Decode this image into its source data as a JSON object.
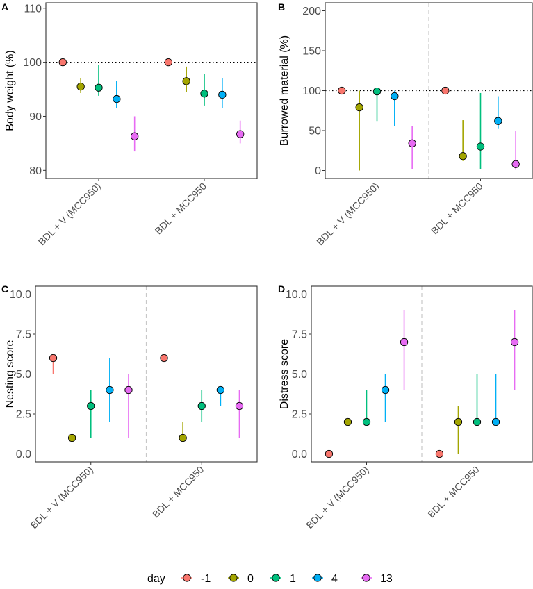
{
  "chart_data": [
    {
      "type": "scatter",
      "panel_letter": "A",
      "title": "",
      "xlabel": "",
      "ylabel": "Body weight (%)",
      "categories": [
        "BDL + V (MCC950)",
        "BDL + MCC950"
      ],
      "ylim": [
        78.5,
        111
      ],
      "yticks": [
        80,
        90,
        100,
        110
      ],
      "ytick_labels": [
        "80",
        "90",
        "100",
        "110"
      ],
      "reference_line": 100,
      "group_divider": false,
      "series": [
        {
          "name": "-1",
          "values": [
            100,
            100
          ],
          "lower": [
            null,
            null
          ],
          "upper": [
            null,
            null
          ]
        },
        {
          "name": "0",
          "values": [
            95.5,
            96.5
          ],
          "lower": [
            94.3,
            94.5
          ],
          "upper": [
            97.0,
            99.2
          ]
        },
        {
          "name": "1",
          "values": [
            95.3,
            94.2
          ],
          "lower": [
            93.8,
            92.0
          ],
          "upper": [
            99.5,
            97.8
          ]
        },
        {
          "name": "4",
          "values": [
            93.2,
            94.0
          ],
          "lower": [
            91.5,
            91.5
          ],
          "upper": [
            96.5,
            97.0
          ]
        },
        {
          "name": "13",
          "values": [
            86.3,
            86.7
          ],
          "lower": [
            83.5,
            85.0
          ],
          "upper": [
            90.0,
            89.2
          ]
        }
      ]
    },
    {
      "type": "scatter",
      "panel_letter": "B",
      "title": "",
      "xlabel": "",
      "ylabel": "Burrowed material (%)",
      "categories": [
        "BDL + V (MCC950)",
        "BDL + MCC950"
      ],
      "ylim": [
        -10,
        210
      ],
      "yticks": [
        0,
        50,
        100,
        150,
        200
      ],
      "ytick_labels": [
        "0",
        "50",
        "100",
        "150",
        "200"
      ],
      "reference_line": 100,
      "group_divider": true,
      "series": [
        {
          "name": "-1",
          "values": [
            100,
            100
          ],
          "lower": [
            null,
            null
          ],
          "upper": [
            null,
            null
          ]
        },
        {
          "name": "0",
          "values": [
            79,
            18
          ],
          "lower": [
            0,
            12
          ],
          "upper": [
            100,
            63
          ]
        },
        {
          "name": "1",
          "values": [
            99,
            30
          ],
          "lower": [
            62,
            2
          ],
          "upper": [
            100,
            97
          ]
        },
        {
          "name": "4",
          "values": [
            93,
            62
          ],
          "lower": [
            56,
            52
          ],
          "upper": [
            100,
            93
          ]
        },
        {
          "name": "13",
          "values": [
            34,
            8
          ],
          "lower": [
            2,
            1
          ],
          "upper": [
            56,
            50
          ]
        }
      ]
    },
    {
      "type": "scatter",
      "panel_letter": "C",
      "title": "",
      "xlabel": "",
      "ylabel": "Nesting score",
      "categories": [
        "BDL + V (MCC950)",
        "BDL + MCC950"
      ],
      "ylim": [
        -0.5,
        10.5
      ],
      "yticks": [
        0,
        2.5,
        5,
        7.5,
        10
      ],
      "ytick_labels": [
        "0.0",
        "2.5",
        "5.0",
        "7.5",
        "10.0"
      ],
      "reference_line": null,
      "group_divider": true,
      "series": [
        {
          "name": "-1",
          "values": [
            6,
            6
          ],
          "lower": [
            5,
            null
          ],
          "upper": [
            6,
            null
          ]
        },
        {
          "name": "0",
          "values": [
            1,
            1
          ],
          "lower": [
            null,
            1
          ],
          "upper": [
            null,
            2
          ]
        },
        {
          "name": "1",
          "values": [
            3,
            3
          ],
          "lower": [
            1,
            2
          ],
          "upper": [
            4,
            4
          ]
        },
        {
          "name": "4",
          "values": [
            4,
            4
          ],
          "lower": [
            2,
            3
          ],
          "upper": [
            6,
            4
          ]
        },
        {
          "name": "13",
          "values": [
            4,
            3
          ],
          "lower": [
            1,
            1
          ],
          "upper": [
            5,
            4
          ]
        }
      ]
    },
    {
      "type": "scatter",
      "panel_letter": "D",
      "title": "",
      "xlabel": "",
      "ylabel": "Distress score",
      "categories": [
        "BDL + V (MCC950)",
        "BDL + MCC950"
      ],
      "ylim": [
        -0.5,
        10.5
      ],
      "yticks": [
        0,
        2.5,
        5,
        7.5,
        10
      ],
      "ytick_labels": [
        "0.0",
        "2.5",
        "5.0",
        "7.5",
        "10.0"
      ],
      "reference_line": null,
      "group_divider": true,
      "series": [
        {
          "name": "-1",
          "values": [
            0,
            0
          ],
          "lower": [
            null,
            null
          ],
          "upper": [
            null,
            null
          ]
        },
        {
          "name": "0",
          "values": [
            2,
            2
          ],
          "lower": [
            null,
            0
          ],
          "upper": [
            null,
            3
          ]
        },
        {
          "name": "1",
          "values": [
            2,
            2
          ],
          "lower": [
            2,
            2
          ],
          "upper": [
            4,
            5
          ]
        },
        {
          "name": "4",
          "values": [
            4,
            2
          ],
          "lower": [
            2,
            2
          ],
          "upper": [
            5,
            5
          ]
        },
        {
          "name": "13",
          "values": [
            7,
            7
          ],
          "lower": [
            4,
            4
          ],
          "upper": [
            9,
            9
          ]
        }
      ]
    }
  ],
  "legend": {
    "title": "day",
    "entries": [
      "-1",
      "0",
      "1",
      "4",
      "13"
    ],
    "placement": "bottom"
  },
  "colors": {
    "-1": "#F8766D",
    "0": "#A3A500",
    "1": "#00BF7D",
    "4": "#00B0F6",
    "13": "#E76BF3"
  }
}
